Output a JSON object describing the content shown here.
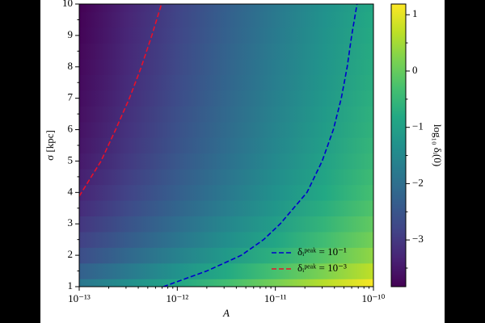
{
  "chart_data": {
    "type": "heatmap",
    "xlabel": "A",
    "ylabel": "σ [kpc]",
    "colorbar_label": "log₁₀ δᵢ(0)",
    "xscale": "log",
    "colormap": "viridis",
    "xlim": [
      1e-13,
      1e-10
    ],
    "xticks": [
      {
        "value": 1e-13,
        "label": "10⁻¹³"
      },
      {
        "value": 1e-12,
        "label": "10⁻¹²"
      },
      {
        "value": 1e-11,
        "label": "10⁻¹¹"
      },
      {
        "value": 1e-10,
        "label": "10⁻¹⁰"
      }
    ],
    "xminorticks": [
      2e-13,
      3e-13,
      4e-13,
      5e-13,
      6e-13,
      7e-13,
      8e-13,
      9e-13,
      2e-12,
      3e-12,
      4e-12,
      5e-12,
      6e-12,
      7e-12,
      8e-12,
      9e-12,
      2e-11,
      3e-11,
      4e-11,
      5e-11,
      6e-11,
      7e-11,
      8e-11,
      9e-11
    ],
    "ylim": [
      1,
      10
    ],
    "yticks": [
      1,
      2,
      3,
      4,
      5,
      6,
      7,
      8,
      9,
      10
    ],
    "yminorticks": [
      1.5,
      2.5,
      3.5,
      4.5,
      5.5,
      6.5,
      7.5,
      8.5,
      9.5
    ],
    "clim": [
      -3.83,
      1.19
    ],
    "cticks": [
      {
        "value": -3,
        "label": "−3"
      },
      {
        "value": -2,
        "label": "−2"
      },
      {
        "value": -1,
        "label": "−1"
      },
      {
        "value": 0,
        "label": "0"
      },
      {
        "value": 1,
        "label": "1"
      }
    ],
    "cminorticks": [
      -3.5,
      -2.5,
      -1.5,
      -0.5,
      0.5
    ],
    "x": [
      1e-13,
      3.162e-13,
      1e-12,
      3.162e-12,
      1e-11,
      3.162e-11,
      1e-10
    ],
    "y": [
      1,
      1.5,
      2,
      2.5,
      3,
      3.5,
      4,
      4.5,
      5,
      5.5,
      6,
      6.5,
      7,
      7.5,
      8,
      8.5,
      9,
      9.5,
      10
    ],
    "z": [
      [
        -1.86,
        -1.36,
        -0.86,
        -0.36,
        0.14,
        0.64,
        1.14
      ],
      [
        -2.3,
        -1.8,
        -1.3,
        -0.8,
        -0.3,
        0.2,
        0.7
      ],
      [
        -2.65,
        -2.15,
        -1.65,
        -1.15,
        -0.65,
        -0.15,
        0.35
      ],
      [
        -2.88,
        -2.38,
        -1.88,
        -1.38,
        -0.88,
        -0.38,
        0.12
      ],
      [
        -3.05,
        -2.55,
        -2.05,
        -1.55,
        -1.05,
        -0.55,
        -0.05
      ],
      [
        -3.2,
        -2.7,
        -2.2,
        -1.7,
        -1.2,
        -0.7,
        -0.2
      ],
      [
        -3.32,
        -2.82,
        -2.32,
        -1.82,
        -1.32,
        -0.82,
        -0.32
      ],
      [
        -3.4,
        -2.9,
        -2.4,
        -1.9,
        -1.4,
        -0.9,
        -0.4
      ],
      [
        -3.48,
        -2.98,
        -2.48,
        -1.98,
        -1.48,
        -0.98,
        -0.48
      ],
      [
        -3.54,
        -3.04,
        -2.54,
        -2.04,
        -1.54,
        -1.04,
        -0.54
      ],
      [
        -3.59,
        -3.09,
        -2.59,
        -2.09,
        -1.59,
        -1.09,
        -0.59
      ],
      [
        -3.63,
        -3.13,
        -2.63,
        -2.13,
        -1.63,
        -1.13,
        -0.63
      ],
      [
        -3.67,
        -3.17,
        -2.67,
        -2.17,
        -1.67,
        -1.17,
        -0.67
      ],
      [
        -3.7,
        -3.2,
        -2.7,
        -2.2,
        -1.7,
        -1.2,
        -0.7
      ],
      [
        -3.73,
        -3.23,
        -2.73,
        -2.23,
        -1.73,
        -1.23,
        -0.73
      ],
      [
        -3.75,
        -3.25,
        -2.75,
        -2.25,
        -1.75,
        -1.25,
        -0.75
      ],
      [
        -3.78,
        -3.28,
        -2.78,
        -2.28,
        -1.78,
        -1.28,
        -0.78
      ],
      [
        -3.8,
        -3.3,
        -2.8,
        -2.3,
        -1.8,
        -1.3,
        -0.8
      ],
      [
        -3.83,
        -3.33,
        -2.83,
        -2.33,
        -1.83,
        -1.33,
        -0.83
      ]
    ],
    "legend": "lower right",
    "series": [
      {
        "name": "δᵢᵖᵉᵃᵏ = 10⁻¹",
        "color": "#0000cc",
        "x": [
          7.2e-13,
          2e-12,
          4.5e-12,
          7.6e-12,
          1.12e-11,
          2.1e-11,
          3e-11,
          3.9e-11,
          4.7e-11,
          5.4e-11,
          6e-11,
          6.8e-11
        ],
        "values": [
          1,
          1.5,
          2,
          2.5,
          3,
          4,
          5,
          6,
          7,
          8,
          9,
          10
        ]
      },
      {
        "name": "δᵢᵖᵉᵃᵏ = 10⁻³",
        "color": "#e8102a",
        "x": [
          1e-13,
          1.67e-13,
          2.35e-13,
          3.25e-13,
          4.3e-13,
          5.5e-13,
          6.9e-13
        ],
        "values": [
          3.88,
          5,
          6,
          7,
          8,
          9,
          10
        ]
      }
    ]
  }
}
